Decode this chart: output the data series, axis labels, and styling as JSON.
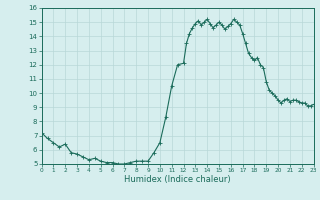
{
  "title": "",
  "xlabel": "Humidex (Indice chaleur)",
  "xlim": [
    0,
    23
  ],
  "ylim": [
    5,
    16
  ],
  "yticks": [
    5,
    6,
    7,
    8,
    9,
    10,
    11,
    12,
    13,
    14,
    15,
    16
  ],
  "xticks": [
    0,
    1,
    2,
    3,
    4,
    5,
    6,
    7,
    8,
    9,
    10,
    11,
    12,
    13,
    14,
    15,
    16,
    17,
    18,
    19,
    20,
    21,
    22,
    23
  ],
  "line_color": "#1a6b5a",
  "bg_color": "#d6eeee",
  "grid_color": "#b8d8d8",
  "x": [
    0.0,
    0.5,
    1.0,
    1.5,
    2.0,
    2.5,
    3.0,
    3.5,
    4.0,
    4.5,
    5.0,
    5.5,
    6.0,
    6.5,
    7.0,
    7.5,
    8.0,
    8.5,
    9.0,
    9.5,
    10.0,
    10.5,
    11.0,
    11.5,
    12.0,
    12.25,
    12.5,
    12.75,
    13.0,
    13.25,
    13.5,
    13.75,
    14.0,
    14.25,
    14.5,
    14.75,
    15.0,
    15.25,
    15.5,
    15.75,
    16.0,
    16.25,
    16.5,
    16.75,
    17.0,
    17.25,
    17.5,
    17.75,
    18.0,
    18.25,
    18.5,
    18.75,
    19.0,
    19.25,
    19.5,
    19.75,
    20.0,
    20.25,
    20.5,
    20.75,
    21.0,
    21.25,
    21.5,
    21.75,
    22.0,
    22.25,
    22.5,
    22.75,
    23.0
  ],
  "y": [
    7.2,
    6.8,
    6.5,
    6.2,
    6.4,
    5.8,
    5.7,
    5.5,
    5.3,
    5.4,
    5.2,
    5.1,
    5.1,
    5.0,
    5.0,
    5.1,
    5.2,
    5.2,
    5.2,
    5.8,
    6.5,
    8.3,
    10.5,
    12.0,
    12.1,
    13.5,
    14.2,
    14.6,
    14.9,
    15.1,
    14.8,
    15.0,
    15.2,
    14.9,
    14.6,
    14.8,
    15.0,
    14.8,
    14.5,
    14.7,
    14.9,
    15.2,
    15.0,
    14.8,
    14.2,
    13.5,
    12.8,
    12.5,
    12.3,
    12.5,
    12.0,
    11.8,
    10.8,
    10.2,
    10.0,
    9.8,
    9.5,
    9.3,
    9.5,
    9.6,
    9.4,
    9.5,
    9.5,
    9.4,
    9.3,
    9.3,
    9.1,
    9.1,
    9.2
  ]
}
